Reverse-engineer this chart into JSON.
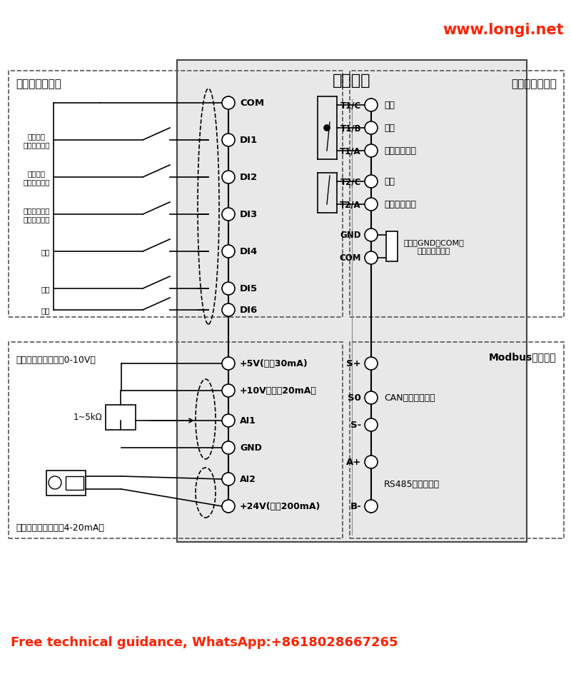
{
  "title": "控制电路",
  "website": "www.longi.net",
  "footer": "Free technical guidance, WhatsApp:+8618028667265",
  "bg_color": "#ffffff",
  "box_bg": "#e8e8e8",
  "left_box_title": "数字量输入端子",
  "right_box_title": "数字量输出端子",
  "di_terminals": [
    "COM",
    "DI1",
    "DI2",
    "DI3",
    "DI4",
    "DI5",
    "DI6"
  ],
  "di_labels": [
    "",
    "正转运行\n（出厂设置）",
    "外部缺水\n（出厂设置）",
    "紧急缺水输入\n（出厂设置）",
    "备用",
    "备用",
    "备用"
  ],
  "do_terminals": [
    "T1/C",
    "T1/B",
    "T1/A",
    "T2/C",
    "T2/A",
    "GND",
    "COM"
  ],
  "do_labels": [
    "常开",
    "常闭",
    "维电器公共端",
    "常开",
    "维电器公共端",
    "",
    ""
  ],
  "gnd_com_note": "出厂时GND与COM之\n间有短接片连接",
  "analog_terminals": [
    "+5V(最大30mA)",
    "+10V（最大20mA）",
    "AI1",
    "GND",
    "AI2",
    "+24V(最大200mA)"
  ],
  "analog_left_label": "电压型传感器输入（0-10V）",
  "analog_resistor": "1~5kΩ",
  "analog_bottom_label": "电流型传感器输入（4-20mA）",
  "comm_terminals": [
    "S+",
    "S0",
    "S-",
    "A+",
    "B-"
  ],
  "comm_right_title": "Modbus通讯端子",
  "comm_label1": "CAN组网通讯端子",
  "comm_label2": "RS485上位机通讯"
}
